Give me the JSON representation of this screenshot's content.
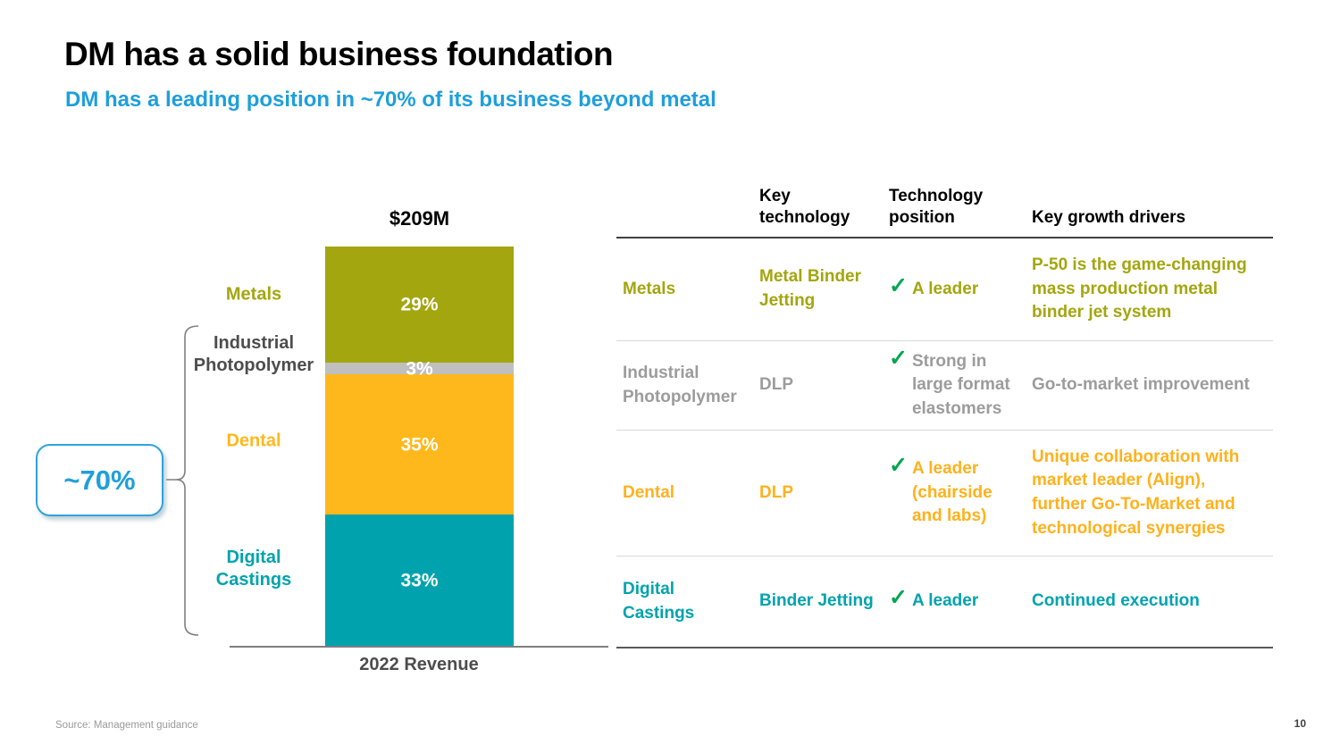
{
  "header": {
    "title": "DM has a solid business foundation",
    "subtitle": "DM has a leading position in ~70% of its business beyond metal"
  },
  "chart_data": {
    "type": "bar",
    "stacked": true,
    "title": "$209M",
    "total_label": "$209M",
    "x_axis_label": "2022 Revenue",
    "categories": [
      "2022 Revenue"
    ],
    "ylim": [
      0,
      100
    ],
    "series": [
      {
        "name": "Metals",
        "value": 29,
        "label": "29%",
        "color": "#A3A60E",
        "label_color": "#A3A60E"
      },
      {
        "name": "Industrial Photopolymer",
        "value": 3,
        "label": "3%",
        "color": "#BFBFBF",
        "label_color": "#4D4D4D"
      },
      {
        "name": "Dental",
        "value": 35,
        "label": "35%",
        "color": "#FFB81C",
        "label_color": "#FFB81C"
      },
      {
        "name": "Digital Castings",
        "value": 33,
        "label": "33%",
        "color": "#00A3AD",
        "label_color": "#00A3AD"
      }
    ],
    "callout": {
      "text": "~70%",
      "covers": [
        "Industrial Photopolymer",
        "Dental",
        "Digital Castings"
      ]
    }
  },
  "table": {
    "check_glyph": "✓",
    "col_headers": {
      "key_technology": "Key technology",
      "tech_position": "Technology position",
      "growth_drivers": "Key growth drivers"
    },
    "rows": [
      {
        "name": "Metals",
        "color": "#A3A60E",
        "key_technology": "Metal Binder Jetting",
        "tech_position": "A leader",
        "growth_drivers": "P-50 is the game-changing mass production metal binder jet system"
      },
      {
        "name": "Industrial Photopolymer",
        "color": "#9C9C9C",
        "key_technology": "DLP",
        "tech_position": "Strong in large format elastomers",
        "growth_drivers": "Go-to-market improvement"
      },
      {
        "name": "Dental",
        "color": "#FFB11C",
        "key_technology": "DLP",
        "tech_position": "A leader (chairside and labs)",
        "growth_drivers": "Unique collaboration with market leader (Align), further Go-To-Market and technological synergies"
      },
      {
        "name": "Digital Castings",
        "color": "#00A3AD",
        "key_technology": "Binder Jetting",
        "tech_position": "A leader",
        "growth_drivers": "Continued execution"
      }
    ]
  },
  "footer": {
    "source": "Source: Management guidance",
    "page_number": "10"
  },
  "colors": {
    "accent_blue": "#1E9FDB",
    "check_green": "#00A651",
    "olive": "#A3A60E",
    "gray_segment": "#BFBFBF",
    "orange": "#FFB81C",
    "teal": "#00A3AD",
    "axis_gray": "#7f7f7f"
  }
}
